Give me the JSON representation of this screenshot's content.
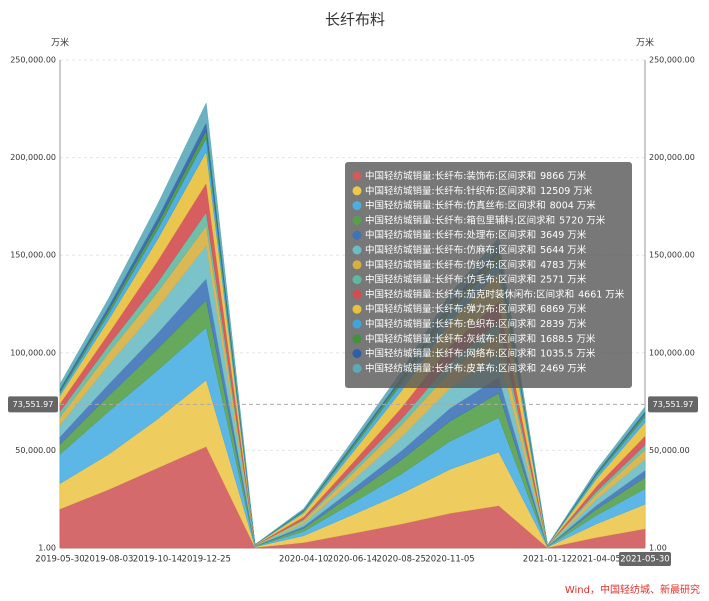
{
  "chart_data": {
    "type": "stacked_area",
    "subtitle": "长纤布料",
    "y_unit": "万米",
    "source": "Wind，中国轻纺城、新晨研究",
    "categories": [
      "2019-05-30",
      "2019-08-03",
      "2019-10-14",
      "2019-12-25",
      null,
      "2020-04-10",
      "2020-06-14",
      "2020-08-25",
      "2020-11-05",
      null,
      "2021-01-12",
      "2021-04-05",
      "2021-05-30"
    ],
    "ylim": [
      1,
      250000
    ],
    "yticks": [
      {
        "value": 1,
        "label": "1.00"
      },
      {
        "value": 50000,
        "label": "50,000.00"
      },
      {
        "value": 100000,
        "label": "100,000.00"
      },
      {
        "value": 150000,
        "label": "150,000.00"
      },
      {
        "value": 200000,
        "label": "200,000.00"
      },
      {
        "value": 250000,
        "label": "250,000.00"
      }
    ],
    "grid": true,
    "axis_pointer": {
      "value": 73551.97,
      "label": "73,551.97"
    },
    "series": [
      {
        "name": "中国轻纺城销量:长纤布:装饰布:区间求和",
        "color": "#d05a5c",
        "values": [
          20000,
          30000,
          41000,
          52000,
          300,
          2800,
          7500,
          12300,
          17800,
          21700,
          200,
          5400,
          9866
        ]
      },
      {
        "name": "中国轻纺城销量:长纤布:针织布:区间求和",
        "color": "#ecc84c",
        "values": [
          13000,
          18000,
          25000,
          34000,
          300,
          3500,
          9500,
          15600,
          22500,
          27500,
          250,
          6900,
          12509
        ]
      },
      {
        "name": "中国轻纺城销量:长纤布:仿真丝布:区间求和",
        "color": "#4aaee3",
        "values": [
          15000,
          22000,
          25000,
          27000,
          200,
          2200,
          6100,
          10000,
          14400,
          17600,
          150,
          4400,
          8004
        ]
      },
      {
        "name": "中国轻纺城销量:长纤布:箱包里辅料:区间求和",
        "color": "#56a04a",
        "values": [
          5000,
          8000,
          11000,
          14000,
          150,
          1600,
          4300,
          7200,
          10300,
          12600,
          120,
          3100,
          5720
        ]
      },
      {
        "name": "中国轻纺城销量:长纤布:处理布:区间求和",
        "color": "#3f73b8",
        "values": [
          4000,
          6000,
          8000,
          11000,
          100,
          1000,
          2800,
          4600,
          6600,
          8000,
          80,
          2000,
          3649
        ]
      },
      {
        "name": "中国轻纺城销量:长纤布:仿麻布:区间求和",
        "color": "#6bbcc4",
        "values": [
          6000,
          10000,
          13000,
          17000,
          150,
          1600,
          4300,
          7100,
          10200,
          12400,
          120,
          3100,
          5644
        ]
      },
      {
        "name": "中国轻纺城销量:长纤布:仿纱布:区间求和",
        "color": "#d8b042",
        "values": [
          4000,
          6000,
          8000,
          10000,
          100,
          1300,
          3600,
          6000,
          8600,
          10500,
          100,
          2600,
          4783
        ]
      },
      {
        "name": "中国轻纺城销量:长纤布:仿毛布:区间求和",
        "color": "#5fb8a2",
        "values": [
          3000,
          4000,
          5000,
          7000,
          50,
          700,
          2000,
          3200,
          4600,
          5700,
          50,
          1400,
          2571
        ]
      },
      {
        "name": "中国轻纺城销量:长纤布:茄克时装休闲布:区间求和",
        "color": "#d24c50",
        "values": [
          4000,
          6000,
          11000,
          15000,
          100,
          1300,
          3500,
          5800,
          8400,
          10300,
          100,
          2600,
          4661
        ]
      },
      {
        "name": "中国轻纺城销量:长纤布:弹力布:区间求和",
        "color": "#e9c03c",
        "values": [
          4000,
          7000,
          11000,
          16000,
          200,
          1900,
          5200,
          8600,
          12400,
          15100,
          150,
          3800,
          6869
        ]
      },
      {
        "name": "中国轻纺城销量:长纤布:色织布:区间求和",
        "color": "#3ea6de",
        "values": [
          1500,
          3000,
          5000,
          7000,
          50,
          800,
          2200,
          3500,
          5100,
          6200,
          60,
          1600,
          2839
        ]
      },
      {
        "name": "中国轻纺城销量:长纤布:灰绒布:区间求和",
        "color": "#43913e",
        "values": [
          1000,
          2000,
          3000,
          4000,
          30,
          500,
          1300,
          2100,
          3000,
          3700,
          30,
          900,
          1688.5
        ]
      },
      {
        "name": "中国轻纺城销量:长纤布:网络布:区间求和",
        "color": "#2e5daa",
        "values": [
          1000,
          2000,
          3000,
          4000,
          20,
          300,
          800,
          1300,
          1900,
          2300,
          20,
          600,
          1035.5
        ]
      },
      {
        "name": "中国轻纺城销量:长纤布:皮革布:区间求和",
        "color": "#5aaab8",
        "values": [
          2500,
          4000,
          7000,
          10000,
          50,
          700,
          1900,
          3100,
          4400,
          5400,
          50,
          1400,
          2469
        ]
      }
    ],
    "tooltip": {
      "category_index": 12,
      "value_labels": [
        "9866 万米",
        "12509 万米",
        "8004 万米",
        "5720 万米",
        "3649 万米",
        "5644 万米",
        "4783 万米",
        "2571 万米",
        "4661 万米",
        "6869 万米",
        "2839 万米",
        "1688.5 万米",
        "1035.5 万米",
        "2469 万米"
      ]
    }
  }
}
